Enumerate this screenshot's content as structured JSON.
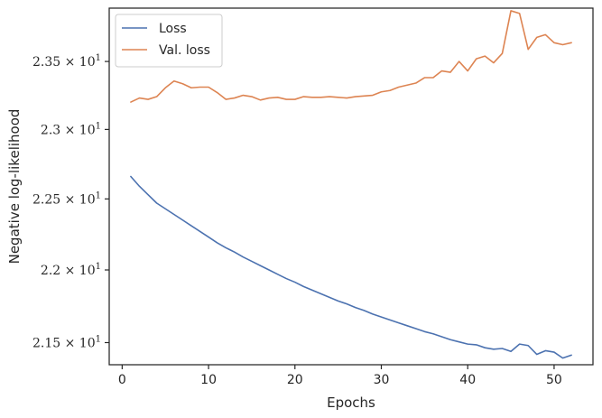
{
  "chart_data": {
    "type": "line",
    "xlabel": "Epochs",
    "ylabel": "Negative log-likelihood",
    "xlim": [
      -1.5,
      54.5
    ],
    "ylim": [
      21.35,
      23.9
    ],
    "yscale": "log",
    "grid": false,
    "legend_position": "upper left",
    "x_ticks": [
      0,
      10,
      20,
      30,
      40,
      50
    ],
    "x_tick_labels": [
      "0",
      "10",
      "20",
      "30",
      "40",
      "50"
    ],
    "y_ticks": [
      {
        "value": 21.5,
        "mantissa": "2.15",
        "base": "10",
        "exponent": "1"
      },
      {
        "value": 22.0,
        "mantissa": "2.2",
        "base": "10",
        "exponent": "1"
      },
      {
        "value": 22.5,
        "mantissa": "2.25",
        "base": "10",
        "exponent": "1"
      },
      {
        "value": 23.0,
        "mantissa": "2.3",
        "base": "10",
        "exponent": "1"
      },
      {
        "value": 23.5,
        "mantissa": "2.35",
        "base": "10",
        "exponent": "1"
      }
    ],
    "x": [
      1,
      2,
      3,
      4,
      5,
      6,
      7,
      8,
      9,
      10,
      11,
      12,
      13,
      14,
      15,
      16,
      17,
      18,
      19,
      20,
      21,
      22,
      23,
      24,
      25,
      26,
      27,
      28,
      29,
      30,
      31,
      32,
      33,
      34,
      35,
      36,
      37,
      38,
      39,
      40,
      41,
      42,
      43,
      44,
      45,
      46,
      47,
      48,
      49,
      50,
      51,
      52
    ],
    "series": [
      {
        "name": "Loss",
        "color": "#4c72b0",
        "values": [
          22.66,
          22.59,
          22.53,
          22.47,
          22.43,
          22.39,
          22.35,
          22.31,
          22.27,
          22.23,
          22.19,
          22.155,
          22.125,
          22.09,
          22.06,
          22.03,
          22.0,
          21.97,
          21.94,
          21.915,
          21.885,
          21.86,
          21.835,
          21.81,
          21.785,
          21.765,
          21.74,
          21.72,
          21.695,
          21.675,
          21.655,
          21.635,
          21.615,
          21.595,
          21.575,
          21.56,
          21.54,
          21.52,
          21.505,
          21.49,
          21.485,
          21.465,
          21.455,
          21.46,
          21.44,
          21.49,
          21.48,
          21.42,
          21.445,
          21.435,
          21.395,
          21.415
        ]
      },
      {
        "name": "Val. loss",
        "color": "#dd8452",
        "values": [
          23.2,
          23.23,
          23.22,
          23.24,
          23.305,
          23.355,
          23.335,
          23.305,
          23.31,
          23.31,
          23.27,
          23.22,
          23.23,
          23.25,
          23.24,
          23.215,
          23.23,
          23.235,
          23.22,
          23.22,
          23.24,
          23.235,
          23.235,
          23.24,
          23.235,
          23.23,
          23.24,
          23.245,
          23.25,
          23.275,
          23.285,
          23.31,
          23.325,
          23.34,
          23.38,
          23.38,
          23.43,
          23.42,
          23.5,
          23.43,
          23.52,
          23.54,
          23.49,
          23.56,
          23.88,
          23.86,
          23.59,
          23.68,
          23.7,
          23.64,
          23.625,
          23.64
        ]
      }
    ]
  }
}
